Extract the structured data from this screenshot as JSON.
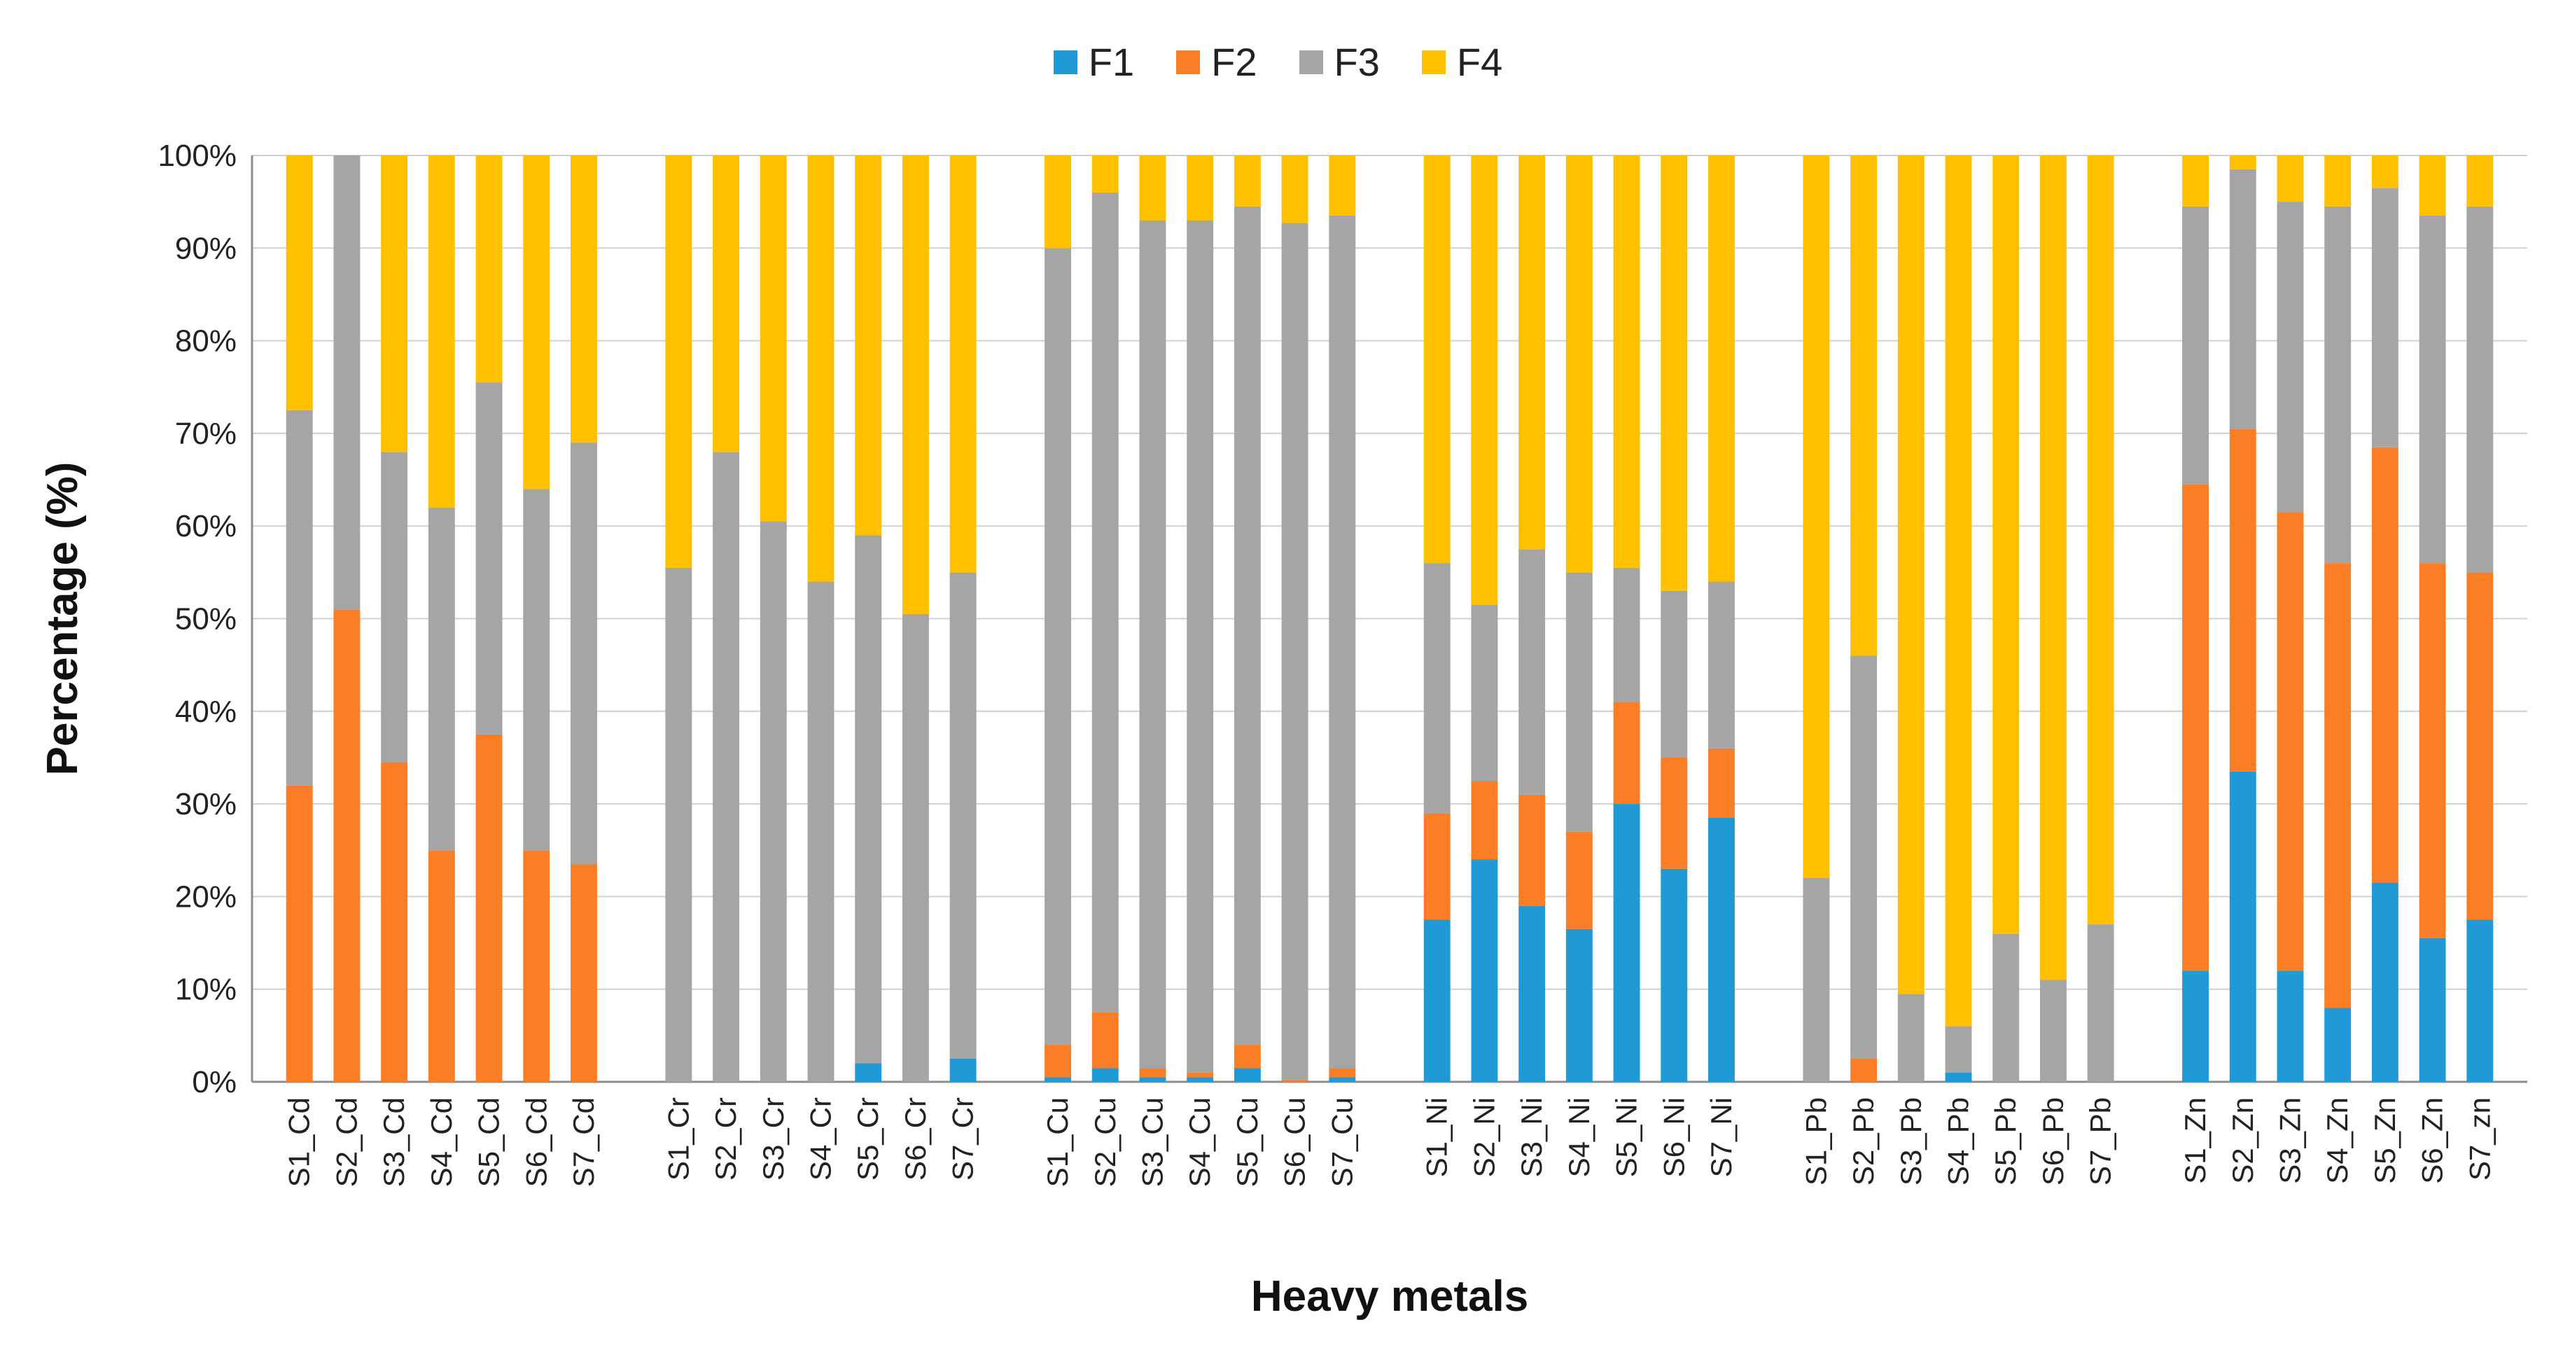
{
  "chart_data": {
    "type": "bar",
    "stacked": true,
    "percent_stacked": true,
    "xlabel": "Heavy metals",
    "ylabel": "Percentage (%)",
    "ylim": [
      0,
      100
    ],
    "yticks": [
      "0%",
      "10%",
      "20%",
      "30%",
      "40%",
      "50%",
      "60%",
      "70%",
      "80%",
      "90%",
      "100%"
    ],
    "grid": "horizontal",
    "legend_position": "top-center",
    "colors": {
      "F1": "#1f9ad6",
      "F2": "#fb7e26",
      "F3": "#a5a5a5",
      "F4": "#ffc000"
    },
    "groups": [
      {
        "categories": [
          "S1_Cd",
          "S2_Cd",
          "S3_Cd",
          "S4_Cd",
          "S5_Cd",
          "S6_Cd",
          "S7_Cd"
        ],
        "F1": [
          0,
          0,
          0,
          0,
          0,
          0,
          0
        ],
        "F2": [
          32,
          51,
          34.5,
          25,
          37.5,
          25,
          23.5
        ],
        "F3": [
          40.5,
          49,
          33.5,
          37,
          38,
          39,
          45.5
        ],
        "F4": [
          27.5,
          0,
          32,
          38,
          24.5,
          36,
          31
        ]
      },
      {
        "categories": [
          "S1_Cr",
          "S2_Cr",
          "S3_Cr",
          "S4_Cr",
          "S5_Cr",
          "S6_Cr",
          "S7_Cr"
        ],
        "F1": [
          0,
          0,
          0,
          0,
          2,
          0,
          2.5
        ],
        "F2": [
          0,
          0,
          0,
          0,
          0,
          0,
          0
        ],
        "F3": [
          55.5,
          68,
          60.5,
          54,
          57,
          50.5,
          52.5
        ],
        "F4": [
          44.5,
          32,
          39.5,
          46,
          41,
          49.5,
          45
        ]
      },
      {
        "categories": [
          "S1_Cu",
          "S2_Cu",
          "S3_Cu",
          "S4_Cu",
          "S5_Cu",
          "S6_Cu",
          "S7_Cu"
        ],
        "F1": [
          0.5,
          1.5,
          0.5,
          0.5,
          1.5,
          0,
          0.5
        ],
        "F2": [
          3.5,
          6,
          1,
          0.5,
          2.5,
          0.2,
          1
        ],
        "F3": [
          86,
          88.5,
          91.5,
          92,
          90.5,
          92.5,
          92
        ],
        "F4": [
          10,
          4,
          7,
          7,
          5.5,
          7.3,
          6.5
        ]
      },
      {
        "categories": [
          "S1_Ni",
          "S2_Ni",
          "S3_Ni",
          "S4_Ni",
          "S5_Ni",
          "S6_Ni",
          "S7_Ni"
        ],
        "F1": [
          17.5,
          24,
          19,
          16.5,
          30,
          23,
          28.5
        ],
        "F2": [
          11.5,
          8.5,
          12,
          10.5,
          11,
          12,
          7.5
        ],
        "F3": [
          27,
          19,
          26.5,
          28,
          14.5,
          18,
          18
        ],
        "F4": [
          44,
          48.5,
          42.5,
          45,
          44.5,
          47,
          46
        ]
      },
      {
        "categories": [
          "S1_Pb",
          "S2_Pb",
          "S3_Pb",
          "S4_Pb",
          "S5_Pb",
          "S6_Pb",
          "S7_Pb"
        ],
        "F1": [
          0,
          0,
          0,
          1,
          0,
          0,
          0
        ],
        "F2": [
          0,
          2.5,
          0,
          0,
          0,
          0,
          0
        ],
        "F3": [
          22,
          43.5,
          9.5,
          5,
          16,
          11,
          17
        ],
        "F4": [
          78,
          54,
          90.5,
          94,
          84,
          89,
          83
        ]
      },
      {
        "categories": [
          "S1_Zn",
          "S2_Zn",
          "S3_Zn",
          "S4_Zn",
          "S5_Zn",
          "S6_Zn",
          "S7_zn"
        ],
        "F1": [
          12,
          33.5,
          12,
          8,
          21.5,
          15.5,
          17.5
        ],
        "F2": [
          52.5,
          37,
          49.5,
          48,
          47,
          40.5,
          37.5
        ],
        "F3": [
          30,
          28,
          33.5,
          38.5,
          28,
          37.5,
          39.5
        ],
        "F4": [
          5.5,
          1.5,
          5,
          5.5,
          3.5,
          6.5,
          5.5
        ]
      }
    ]
  },
  "legend": {
    "items": [
      {
        "label": "F1",
        "color": "#1f9ad6"
      },
      {
        "label": "F2",
        "color": "#fb7e26"
      },
      {
        "label": "F3",
        "color": "#a5a5a5"
      },
      {
        "label": "F4",
        "color": "#ffc000"
      }
    ]
  }
}
